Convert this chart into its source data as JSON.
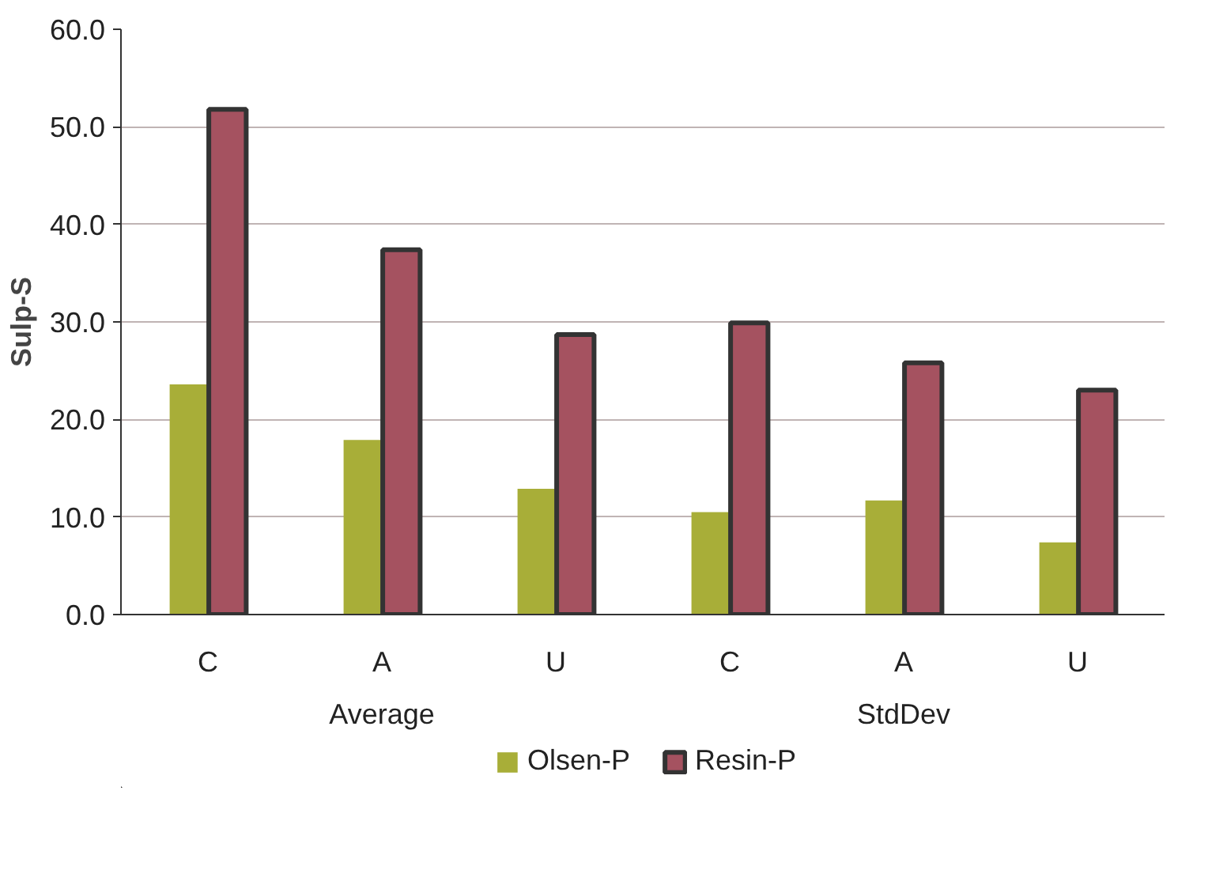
{
  "chart_data": {
    "type": "bar",
    "ylabel": "Sulp-S",
    "categories": [
      "C",
      "A",
      "U",
      "C",
      "A",
      "U"
    ],
    "annotations": [
      "Average",
      "StdDev"
    ],
    "series": [
      {
        "name": "Olsen-P",
        "color": "#a8ae38",
        "values": [
          23.6,
          17.9,
          12.9,
          10.5,
          11.7,
          7.4
        ]
      },
      {
        "name": "Resin-P",
        "color": "#a55260",
        "values": [
          51.8,
          37.4,
          28.7,
          29.9,
          25.8,
          23.0
        ]
      }
    ],
    "ylim": [
      0,
      60
    ],
    "yticks": [
      {
        "value": 0,
        "label": "0.0"
      },
      {
        "value": 10,
        "label": "10.0"
      },
      {
        "value": 20,
        "label": "20.0"
      },
      {
        "value": 30,
        "label": "30.0"
      },
      {
        "value": 40,
        "label": "40.0"
      },
      {
        "value": 50,
        "label": "50.0"
      },
      {
        "value": 60,
        "label": "60.0"
      }
    ],
    "grid": "y",
    "legend": "bottom"
  }
}
